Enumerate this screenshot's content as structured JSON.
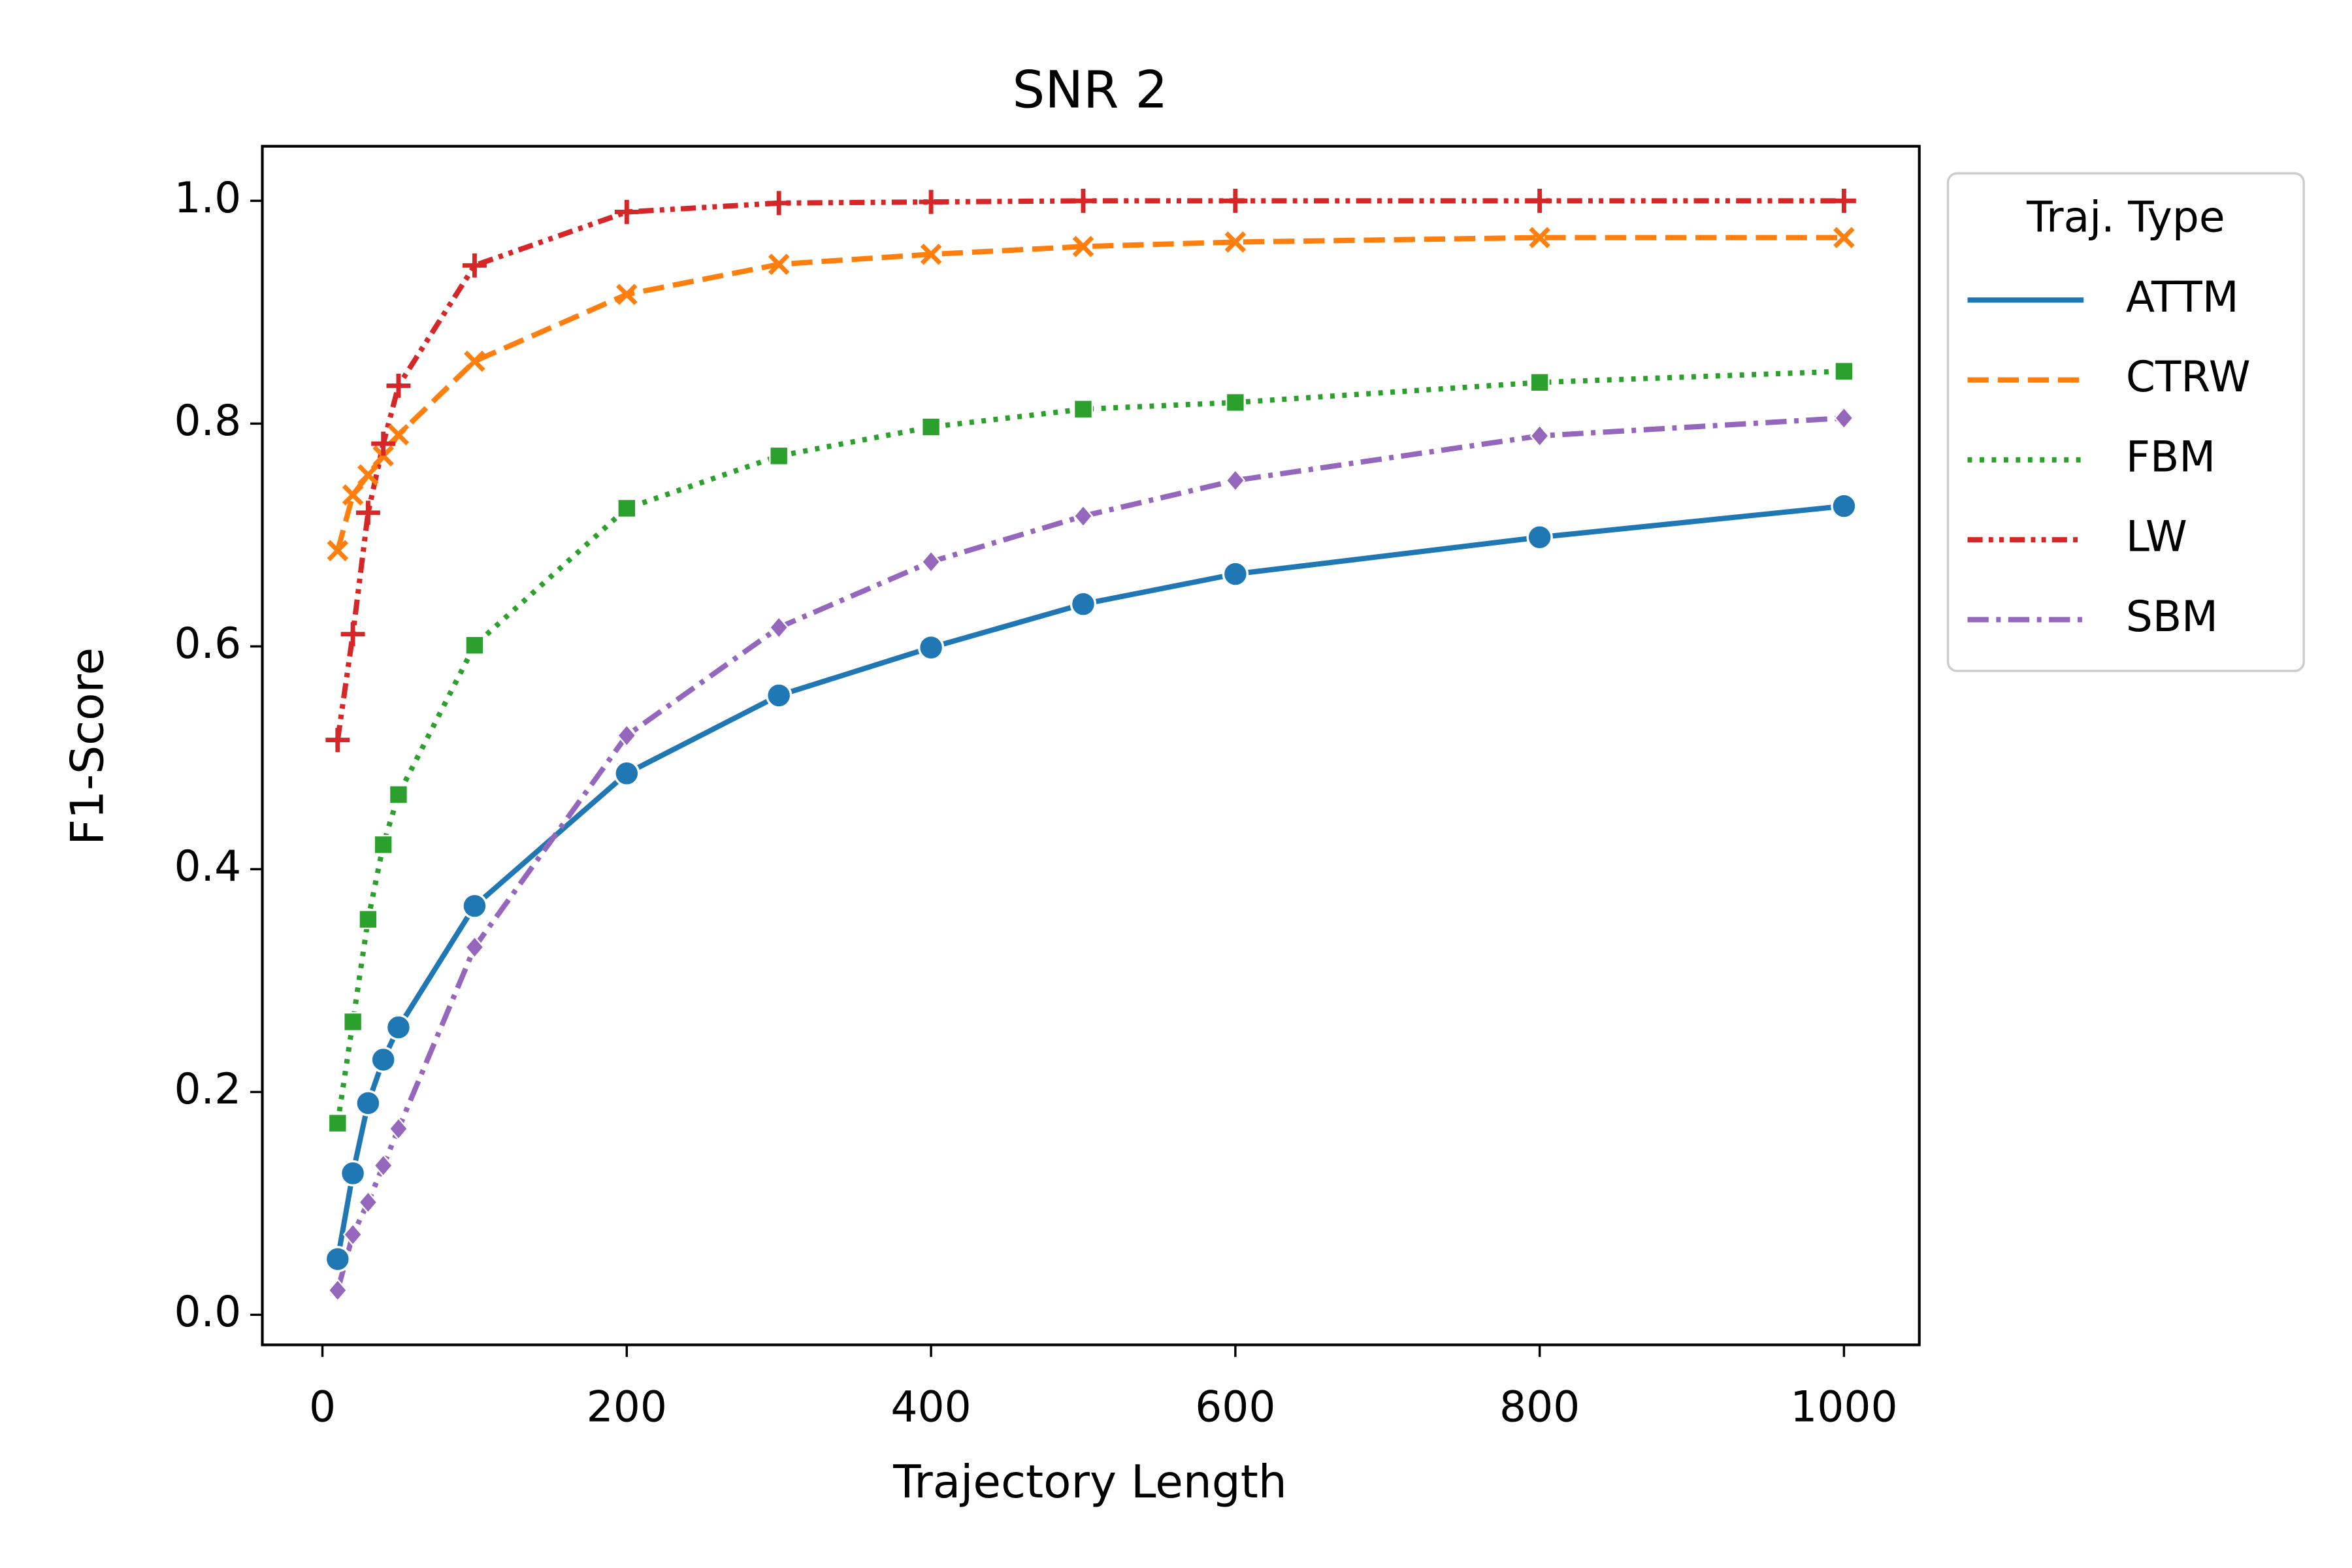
{
  "chart_data": {
    "type": "line",
    "title": "SNR 2",
    "xlabel": "Trajectory Length",
    "ylabel": "F1-Score",
    "x": [
      10,
      20,
      30,
      40,
      50,
      100,
      200,
      300,
      400,
      500,
      600,
      800,
      1000
    ],
    "series": [
      {
        "name": "ATTM",
        "color": "#1f77b4",
        "marker": "circle",
        "dash": "solid",
        "values": [
          0.05,
          0.127,
          0.19,
          0.229,
          0.258,
          0.367,
          0.486,
          0.556,
          0.599,
          0.638,
          0.665,
          0.698,
          0.726
        ]
      },
      {
        "name": "CTRW",
        "color": "#ff7f0e",
        "marker": "x",
        "dash": "dashed",
        "values": [
          0.686,
          0.736,
          0.754,
          0.771,
          0.79,
          0.856,
          0.916,
          0.943,
          0.952,
          0.959,
          0.963,
          0.967,
          0.967
        ]
      },
      {
        "name": "FBM",
        "color": "#2ca02c",
        "marker": "square",
        "dash": "dotted",
        "values": [
          0.172,
          0.263,
          0.355,
          0.422,
          0.467,
          0.601,
          0.724,
          0.771,
          0.797,
          0.813,
          0.819,
          0.837,
          0.847
        ]
      },
      {
        "name": "LW",
        "color": "#d62728",
        "marker": "plus",
        "dash": "dashdotdot",
        "values": [
          0.516,
          0.611,
          0.72,
          0.782,
          0.834,
          0.942,
          0.99,
          0.998,
          0.999,
          1.0,
          1.0,
          1.0,
          1.0
        ]
      },
      {
        "name": "SBM",
        "color": "#9467bd",
        "marker": "diamond",
        "dash": "dashdot",
        "values": [
          0.022,
          0.072,
          0.101,
          0.134,
          0.167,
          0.33,
          0.52,
          0.617,
          0.676,
          0.717,
          0.749,
          0.789,
          0.805
        ]
      }
    ],
    "xlim": [
      -39.5,
      1049.5
    ],
    "ylim": [
      -0.027,
      1.049
    ],
    "xticks": [
      0,
      200,
      400,
      600,
      800,
      1000
    ],
    "yticks": [
      {
        "value": 0,
        "label": "0.0"
      },
      0.2,
      0.4,
      0.6,
      0.8,
      {
        "value": 1,
        "label": "1.0"
      }
    ],
    "legend": {
      "title": "Traj. Type",
      "position": "outside right"
    },
    "grid": false
  }
}
